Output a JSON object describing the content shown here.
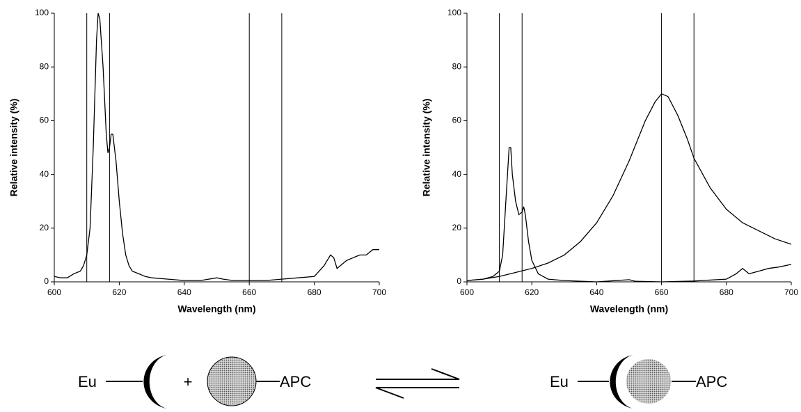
{
  "chart_data": [
    {
      "type": "line",
      "xlabel": "Wavelength (nm)",
      "ylabel": "Relative intensity (%)",
      "xlim": [
        600,
        700
      ],
      "ylim": [
        0,
        100
      ],
      "xticks": [
        600,
        620,
        640,
        660,
        680,
        700
      ],
      "yticks": [
        0,
        20,
        40,
        60,
        80,
        100
      ],
      "vlines": [
        610,
        617,
        660,
        670
      ],
      "series": [
        {
          "color": "#000000",
          "x": [
            600,
            602,
            604,
            606,
            608,
            609,
            610,
            611,
            612,
            613,
            613.5,
            614,
            615,
            616,
            616.5,
            617,
            617.5,
            618,
            619,
            620,
            621,
            622,
            623,
            624,
            626,
            628,
            630,
            635,
            640,
            645,
            650,
            652,
            655,
            660,
            665,
            670,
            675,
            680,
            683,
            685,
            686,
            687,
            688,
            690,
            692,
            694,
            696,
            698,
            700
          ],
          "values": [
            2,
            1.5,
            1.5,
            3,
            4,
            6,
            10,
            20,
            50,
            90,
            100,
            98,
            80,
            55,
            48,
            50,
            55,
            55,
            45,
            30,
            18,
            10,
            6,
            4,
            3,
            2,
            1.5,
            1,
            0.5,
            0.5,
            1.5,
            1,
            0.5,
            0.5,
            0.5,
            1,
            1.5,
            2,
            6,
            10,
            9,
            5,
            6,
            8,
            9,
            10,
            10,
            12,
            12
          ]
        }
      ]
    },
    {
      "type": "line",
      "xlabel": "Wavelength (nm)",
      "ylabel": "Relative intensity (%)",
      "xlim": [
        600,
        700
      ],
      "ylim": [
        0,
        100
      ],
      "xticks": [
        600,
        620,
        640,
        660,
        680,
        700
      ],
      "yticks": [
        0,
        20,
        40,
        60,
        80,
        100
      ],
      "vlines": [
        610,
        617,
        660,
        670
      ],
      "series": [
        {
          "color": "#000000",
          "x": [
            600,
            605,
            608,
            610,
            611,
            612,
            613,
            613.5,
            614,
            615,
            616,
            617,
            617.5,
            618,
            619,
            620,
            622,
            625,
            630,
            640,
            650,
            652,
            660,
            670,
            680,
            683,
            685,
            687,
            690,
            693,
            696,
            700
          ],
          "values": [
            0.5,
            1,
            2,
            4,
            10,
            30,
            50,
            50,
            40,
            30,
            25,
            26,
            28,
            25,
            15,
            8,
            3,
            1,
            0.5,
            0,
            0.8,
            0.2,
            0,
            0.3,
            1,
            3,
            5,
            3,
            4,
            5,
            5.5,
            6.5
          ]
        },
        {
          "color": "#000000",
          "x": [
            600,
            605,
            610,
            615,
            620,
            625,
            630,
            635,
            640,
            645,
            650,
            655,
            658,
            660,
            662,
            665,
            668,
            670,
            675,
            680,
            685,
            690,
            695,
            700
          ],
          "values": [
            0.5,
            1,
            2,
            3.5,
            5,
            7,
            10,
            15,
            22,
            32,
            45,
            60,
            67,
            70,
            69,
            62,
            53,
            46,
            35,
            27,
            22,
            19,
            16,
            14
          ]
        }
      ]
    }
  ],
  "diagram": {
    "left": {
      "donor": "Eu",
      "plus": "+",
      "acceptor": "APC"
    },
    "right": {
      "donor": "Eu",
      "acceptor": "APC"
    }
  }
}
